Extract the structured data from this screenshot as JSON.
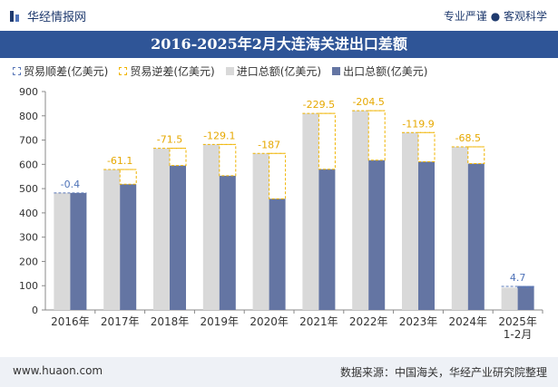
{
  "header": {
    "brand": "华经情报网",
    "tagline": "专业严谨 ● 客观科学"
  },
  "footer": {
    "url": "www.huaon.com",
    "source": "数据来源：中国海关，华经产业研究院整理"
  },
  "colors": {
    "title_bg": "#2f5597",
    "import": "#d9d9d9",
    "export": "#6475a3",
    "deficit_border": "#f0b400",
    "surplus_border": "#5a78b8"
  },
  "chart_data": {
    "type": "bar",
    "title": "2016-2025年2月大连海关进出口差额",
    "categories": [
      "2016年",
      "2017年",
      "2018年",
      "2019年",
      "2020年",
      "2021年",
      "2022年",
      "2023年",
      "2024年",
      "2025年\n1-2月"
    ],
    "legend": [
      "贸易顺差(亿美元)",
      "贸易逆差(亿美元)",
      "进口总额(亿美元)",
      "出口总额(亿美元)"
    ],
    "legend_position": "top-left",
    "series": [
      {
        "name": "进口总额(亿美元)",
        "values": [
          482,
          579,
          666,
          682,
          645,
          810,
          821,
          731,
          672,
          92
        ]
      },
      {
        "name": "出口总额(亿美元)",
        "values": [
          482,
          518,
          595,
          553,
          458,
          580,
          617,
          611,
          603,
          97
        ]
      }
    ],
    "balance_labels": [
      "-0.4",
      "-61.1",
      "-71.5",
      "-129.1",
      "-187",
      "-229.5",
      "-204.5",
      "-119.9",
      "-68.5",
      "4.7"
    ],
    "ylim": [
      0,
      900
    ],
    "yticks": [
      0,
      100,
      200,
      300,
      400,
      500,
      600,
      700,
      800,
      900
    ],
    "grid": false
  }
}
